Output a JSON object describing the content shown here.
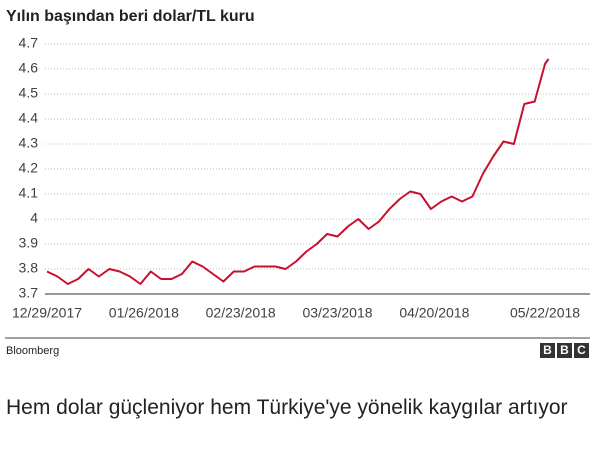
{
  "chart_data": {
    "type": "line",
    "title": "Yılın başından beri dolar/TL kuru",
    "source": "Bloomberg",
    "x": [
      "2017-12-29",
      "2018-01-01",
      "2018-01-04",
      "2018-01-07",
      "2018-01-10",
      "2018-01-13",
      "2018-01-16",
      "2018-01-19",
      "2018-01-22",
      "2018-01-25",
      "2018-01-28",
      "2018-01-31",
      "2018-02-03",
      "2018-02-06",
      "2018-02-09",
      "2018-02-12",
      "2018-02-15",
      "2018-02-18",
      "2018-02-21",
      "2018-02-24",
      "2018-02-27",
      "2018-03-02",
      "2018-03-05",
      "2018-03-08",
      "2018-03-11",
      "2018-03-14",
      "2018-03-17",
      "2018-03-20",
      "2018-03-23",
      "2018-03-26",
      "2018-03-29",
      "2018-04-01",
      "2018-04-04",
      "2018-04-07",
      "2018-04-10",
      "2018-04-13",
      "2018-04-16",
      "2018-04-19",
      "2018-04-22",
      "2018-04-25",
      "2018-04-28",
      "2018-05-01",
      "2018-05-04",
      "2018-05-07",
      "2018-05-10",
      "2018-05-13",
      "2018-05-16",
      "2018-05-19",
      "2018-05-22",
      "2018-05-23"
    ],
    "series": [
      {
        "color": "#c8102e",
        "values": [
          3.79,
          3.77,
          3.74,
          3.76,
          3.8,
          3.77,
          3.8,
          3.79,
          3.77,
          3.74,
          3.79,
          3.76,
          3.76,
          3.78,
          3.83,
          3.81,
          3.78,
          3.75,
          3.79,
          3.79,
          3.81,
          3.81,
          3.81,
          3.8,
          3.83,
          3.87,
          3.9,
          3.94,
          3.93,
          3.97,
          4.0,
          3.96,
          3.99,
          4.04,
          4.08,
          4.11,
          4.1,
          4.04,
          4.07,
          4.09,
          4.07,
          4.09,
          4.18,
          4.25,
          4.31,
          4.3,
          4.46,
          4.47,
          4.62,
          4.64
        ]
      }
    ],
    "xlim": [
      "2017-12-29",
      "2018-06-04"
    ],
    "xticks": [
      {
        "value": "2017-12-29",
        "label": "12/29/2017"
      },
      {
        "value": "2018-01-26",
        "label": "01/26/2018"
      },
      {
        "value": "2018-02-23",
        "label": "02/23/2018"
      },
      {
        "value": "2018-03-23",
        "label": "03/23/2018"
      },
      {
        "value": "2018-04-20",
        "label": "04/20/2018"
      },
      {
        "value": "2018-05-22",
        "label": "05/22/2018"
      }
    ],
    "ylim": [
      3.7,
      4.7
    ],
    "yticks": [
      3.7,
      3.8,
      3.9,
      4,
      4.1,
      4.2,
      4.3,
      4.4,
      4.5,
      4.6,
      4.7
    ],
    "grid": true
  },
  "logo": [
    "B",
    "B",
    "C"
  ],
  "caption": "Hem dolar güçleniyor hem Türkiye'ye yönelik kaygılar artıyor"
}
